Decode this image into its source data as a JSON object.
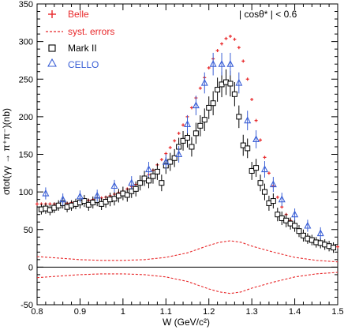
{
  "chart_data": {
    "type": "scatter",
    "xlabel": "W (GeV/c²)",
    "ylabel": "σtot(γγ → π⁺π⁻)(nb)",
    "annotation": "| cosθ* | < 0.6",
    "xlim": [
      0.8,
      1.5
    ],
    "ylim": [
      -50,
      350
    ],
    "x_ticks": [
      "0.8",
      "0.9",
      "1",
      "1.1",
      "1.2",
      "1.3",
      "1.4",
      "1.5"
    ],
    "y_ticks": [
      "-50",
      "0",
      "50",
      "100",
      "150",
      "200",
      "250",
      "300",
      "350"
    ],
    "legend_position": "top-left",
    "colors": {
      "belle": "#e8282a",
      "mark2": "#000000",
      "cello": "#3a5fd6",
      "zero_line": "#000000"
    },
    "series": [
      {
        "name": "Belle",
        "marker": "plus",
        "x": [
          0.8,
          0.81,
          0.82,
          0.83,
          0.84,
          0.85,
          0.86,
          0.87,
          0.88,
          0.89,
          0.9,
          0.91,
          0.92,
          0.93,
          0.94,
          0.95,
          0.96,
          0.97,
          0.98,
          0.99,
          1.0,
          1.01,
          1.02,
          1.03,
          1.04,
          1.05,
          1.06,
          1.07,
          1.08,
          1.09,
          1.1,
          1.11,
          1.12,
          1.13,
          1.14,
          1.15,
          1.16,
          1.17,
          1.18,
          1.19,
          1.2,
          1.21,
          1.22,
          1.23,
          1.24,
          1.25,
          1.26,
          1.27,
          1.28,
          1.29,
          1.3,
          1.31,
          1.32,
          1.33,
          1.34,
          1.35,
          1.36,
          1.37,
          1.38,
          1.39,
          1.4,
          1.41,
          1.42,
          1.43,
          1.44,
          1.45,
          1.46,
          1.47,
          1.48,
          1.49,
          1.5
        ],
        "y": [
          84,
          84,
          84,
          84,
          84,
          84,
          85,
          85,
          86,
          86,
          87,
          88,
          89,
          90,
          91,
          92,
          93,
          95,
          97,
          99,
          101,
          104,
          107,
          110,
          114,
          118,
          123,
          129,
          136,
          143,
          151,
          159,
          168,
          178,
          189,
          200,
          212,
          225,
          238,
          252,
          265,
          277,
          288,
          297,
          304,
          307,
          303,
          292,
          274,
          250,
          223,
          195,
          169,
          146,
          125,
          108,
          93,
          80,
          70,
          62,
          55,
          49,
          44,
          40,
          36,
          33,
          31,
          29,
          28,
          27,
          27
        ]
      },
      {
        "name": "Mark II",
        "marker": "open-square",
        "x": [
          0.81,
          0.82,
          0.83,
          0.84,
          0.85,
          0.86,
          0.87,
          0.88,
          0.89,
          0.9,
          0.91,
          0.92,
          0.93,
          0.94,
          0.95,
          0.96,
          0.97,
          0.98,
          0.99,
          1.0,
          1.01,
          1.02,
          1.03,
          1.04,
          1.05,
          1.06,
          1.07,
          1.08,
          1.09,
          1.1,
          1.11,
          1.12,
          1.13,
          1.14,
          1.15,
          1.16,
          1.17,
          1.18,
          1.19,
          1.2,
          1.21,
          1.22,
          1.23,
          1.24,
          1.25,
          1.26,
          1.27,
          1.28,
          1.29,
          1.3,
          1.31,
          1.32,
          1.33,
          1.34,
          1.35,
          1.36,
          1.37,
          1.38,
          1.39,
          1.4,
          1.41,
          1.42,
          1.43,
          1.44,
          1.45,
          1.46,
          1.47,
          1.48,
          1.49
        ],
        "y": [
          77,
          78,
          76,
          79,
          82,
          85,
          80,
          82,
          84,
          86,
          88,
          83,
          86,
          89,
          84,
          87,
          90,
          91,
          95,
          98,
          96,
          101,
          104,
          112,
          118,
          115,
          121,
          127,
          112,
          135,
          140,
          145,
          160,
          168,
          172,
          160,
          178,
          188,
          196,
          212,
          218,
          236,
          243,
          246,
          244,
          230,
          200,
          162,
          158,
          128,
          132,
          112,
          100,
          85,
          88,
          70,
          65,
          62,
          58,
          55,
          48,
          42,
          38,
          36,
          33,
          32,
          30,
          28,
          26
        ],
        "errors": [
          7,
          7,
          7,
          7,
          7,
          7,
          7,
          7,
          7,
          8,
          8,
          8,
          8,
          8,
          8,
          8,
          9,
          9,
          9,
          9,
          9,
          9,
          10,
          10,
          10,
          10,
          10,
          11,
          11,
          11,
          12,
          12,
          12,
          13,
          13,
          13,
          14,
          14,
          15,
          15,
          16,
          16,
          17,
          17,
          17,
          16,
          15,
          14,
          13,
          12,
          12,
          11,
          11,
          10,
          10,
          9,
          9,
          9,
          8,
          8,
          8,
          8,
          7,
          7,
          7,
          7,
          7,
          7,
          7
        ]
      },
      {
        "name": "CELLO",
        "marker": "open-triangle",
        "x": [
          0.82,
          0.86,
          0.9,
          0.94,
          0.98,
          1.02,
          1.06,
          1.1,
          1.13,
          1.15,
          1.17,
          1.19,
          1.21,
          1.23,
          1.25,
          1.27,
          1.29,
          1.31,
          1.33,
          1.35,
          1.37,
          1.4,
          1.43,
          1.46
        ],
        "y": [
          98,
          90,
          94,
          95,
          108,
          112,
          130,
          140,
          150,
          190,
          215,
          245,
          270,
          270,
          270,
          245,
          195,
          170,
          130,
          110,
          90,
          70,
          55,
          45
        ],
        "errors": [
          8,
          8,
          8,
          8,
          8,
          9,
          10,
          10,
          11,
          12,
          13,
          14,
          15,
          15,
          15,
          14,
          13,
          12,
          11,
          10,
          9,
          8,
          8,
          8
        ]
      },
      {
        "name": "syst. errors",
        "style": "dashed",
        "x": [
          0.8,
          0.85,
          0.9,
          0.95,
          1.0,
          1.05,
          1.1,
          1.15,
          1.2,
          1.225,
          1.25,
          1.275,
          1.3,
          1.35,
          1.4,
          1.45,
          1.5
        ],
        "y": [
          14,
          12,
          10,
          9,
          9,
          10,
          13,
          19,
          29,
          33,
          35,
          33,
          28,
          20,
          13,
          9,
          7
        ]
      }
    ]
  }
}
